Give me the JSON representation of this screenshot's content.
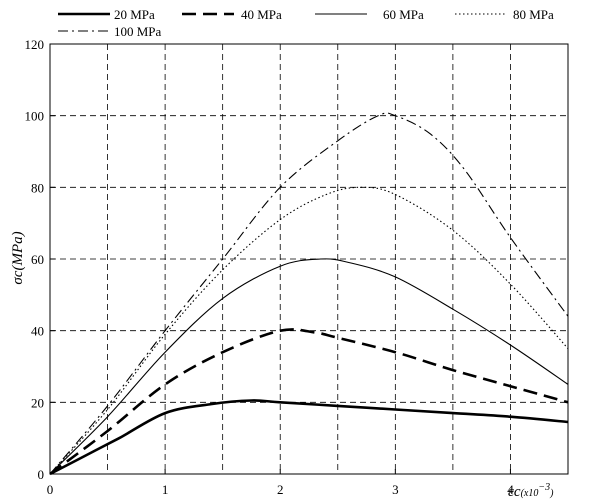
{
  "chart_data": {
    "type": "line",
    "title": "",
    "xlabel": "εc",
    "xlabel_unit": "(x10",
    "xlabel_exponent": "−3",
    "xlabel_close": ")",
    "ylabel": "σc",
    "ylabel_unit": "(MPa)",
    "xlim": [
      0,
      4.5
    ],
    "ylim": [
      0,
      120
    ],
    "xticks": [
      0,
      1,
      2,
      3,
      4
    ],
    "yticks": [
      0,
      20,
      40,
      60,
      80,
      100,
      120
    ],
    "grid": true,
    "grid_style": "dashed",
    "legend_position": "top",
    "series": [
      {
        "name": "20 MPa",
        "style": "thick-solid",
        "x": [
          0,
          0.3,
          0.6,
          1.0,
          1.4,
          1.75,
          2.0,
          2.5,
          3.0,
          3.5,
          4.0,
          4.5
        ],
        "y": [
          0,
          5,
          10,
          17,
          19.5,
          20.5,
          20,
          19,
          18,
          17,
          16,
          14.5
        ]
      },
      {
        "name": "40 MPa",
        "style": "thick-dashed",
        "x": [
          0,
          0.5,
          1.0,
          1.5,
          2.0,
          2.3,
          2.5,
          3.0,
          3.5,
          4.0,
          4.5
        ],
        "y": [
          0,
          12,
          25,
          34,
          40,
          39.5,
          38,
          34,
          29,
          24.5,
          20
        ]
      },
      {
        "name": "60 MPa",
        "style": "solid",
        "x": [
          0,
          0.5,
          1.0,
          1.5,
          2.0,
          2.35,
          2.6,
          3.0,
          3.5,
          4.0,
          4.5
        ],
        "y": [
          0,
          16,
          34,
          49,
          58,
          60,
          59,
          55,
          46,
          36,
          25
        ]
      },
      {
        "name": "80 MPa",
        "style": "dotted",
        "x": [
          0,
          0.5,
          1.0,
          1.5,
          2.0,
          2.4,
          2.7,
          3.0,
          3.5,
          4.0,
          4.5
        ],
        "y": [
          0,
          18,
          39,
          57,
          71,
          78,
          80,
          78,
          68,
          53,
          35
        ]
      },
      {
        "name": "100 MPa",
        "style": "dash-dot",
        "x": [
          0,
          0.5,
          1.0,
          1.5,
          2.0,
          2.5,
          2.85,
          3.0,
          3.3,
          3.6,
          4.0,
          4.5
        ],
        "y": [
          0,
          19,
          40,
          60,
          80,
          93,
          100,
          100,
          95,
          85,
          66,
          44
        ]
      }
    ]
  }
}
